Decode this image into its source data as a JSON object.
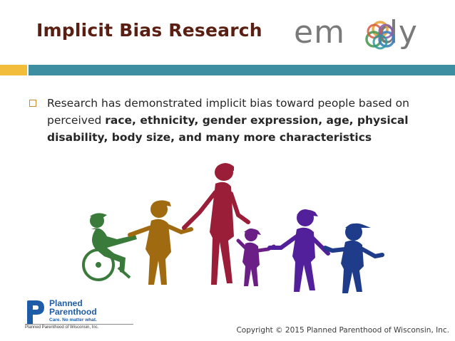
{
  "slide": {
    "title": "Implicit Bias Research",
    "brand_logo_text": "embody",
    "bullet_intro": "Research has demonstrated implicit bias toward people based on perceived ",
    "bullet_bold": "race, ethnicity, gender expression, age, physical disability, body size, and many more characteristics",
    "footer_org_name_line1": "Planned",
    "footer_org_name_line2": "Parenthood",
    "footer_tagline": "Care. No matter what.",
    "footer_affiliate": "Planned Parenthood of Wisconsin, Inc.",
    "copyright": "Copyright © 2015 Planned Parenthood of Wisconsin, Inc."
  },
  "colors": {
    "title": "#5a1e12",
    "band_gold": "#f2bd3a",
    "band_teal": "#3d8ea0",
    "bullet_box": "#c98a2b",
    "figure_green": "#3a7a3a",
    "figure_brown": "#a06a10",
    "figure_crimson": "#9a1e38",
    "figure_purple": "#6a1e86",
    "figure_violet": "#52209a",
    "figure_navy": "#1f3c8a",
    "pp_blue": "#1f5ca8"
  },
  "illustration": {
    "figures": [
      "person-in-wheelchair",
      "adult",
      "tall-adult",
      "child",
      "adult",
      "adult-with-cap"
    ]
  }
}
